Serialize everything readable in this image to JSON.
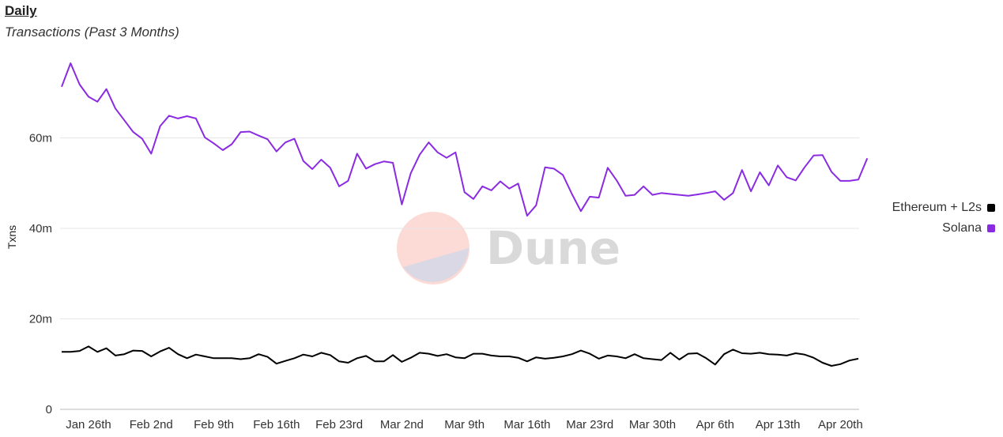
{
  "title": "Daily",
  "subtitle": "Transactions (Past 3 Months)",
  "watermark": {
    "text": "Dune"
  },
  "chart_data": {
    "type": "line",
    "title": "Daily",
    "subtitle": "Transactions (Past 3 Months)",
    "xlabel": "",
    "ylabel": "Txns",
    "ylim": [
      0,
      80000000
    ],
    "yticks": [
      0,
      20000000,
      40000000,
      60000000
    ],
    "ytick_labels": [
      "0",
      "20m",
      "40m",
      "60m"
    ],
    "xtick_labels": [
      "Jan 26th",
      "Feb 2nd",
      "Feb 9th",
      "Feb 16th",
      "Feb 23rd",
      "Mar 2nd",
      "Mar 9th",
      "Mar 16th",
      "Mar 23rd",
      "Mar 30th",
      "Apr 6th",
      "Apr 13th",
      "Apr 20th"
    ],
    "grid": true,
    "legend_position": "right",
    "series": [
      {
        "name": "Ethereum + L2s",
        "color": "#000000",
        "values": [
          12.7,
          12.7,
          12.9,
          13.9,
          12.7,
          13.5,
          11.9,
          12.2,
          13.0,
          12.9,
          11.7,
          12.8,
          13.6,
          12.2,
          11.3,
          12.1,
          11.7,
          11.3,
          11.3,
          11.3,
          11.1,
          11.3,
          12.2,
          11.6,
          10.1,
          10.7,
          11.3,
          12.1,
          11.7,
          12.5,
          12.0,
          10.6,
          10.3,
          11.3,
          11.8,
          10.6,
          10.6,
          12.0,
          10.5,
          11.4,
          12.5,
          12.3,
          11.8,
          12.2,
          11.5,
          11.3,
          12.3,
          12.3,
          11.9,
          11.7,
          11.7,
          11.4,
          10.6,
          11.5,
          11.2,
          11.4,
          11.7,
          12.2,
          13.0,
          12.3,
          11.2,
          11.9,
          11.7,
          11.3,
          12.2,
          11.3,
          11.1,
          10.9,
          12.5,
          11.0,
          12.3,
          12.4,
          11.3,
          9.9,
          12.2,
          13.2,
          12.4,
          12.3,
          12.5,
          12.2,
          12.1,
          11.9,
          12.4,
          12.1,
          11.4,
          10.3,
          9.6,
          10.0,
          10.8,
          11.2
        ]
      },
      {
        "name": "Solana",
        "color": "#8a2be2",
        "values": [
          71.3,
          76.5,
          71.8,
          69.1,
          68.0,
          70.8,
          66.5,
          63.9,
          61.3,
          59.8,
          56.5,
          62.6,
          64.9,
          64.3,
          64.8,
          64.3,
          60.1,
          58.8,
          57.3,
          58.6,
          61.3,
          61.4,
          60.5,
          59.7,
          57.0,
          59.0,
          59.8,
          54.9,
          53.1,
          55.2,
          53.4,
          49.3,
          50.5,
          56.5,
          53.2,
          54.2,
          54.8,
          54.5,
          45.3,
          52.2,
          56.3,
          59.0,
          56.8,
          55.6,
          56.8,
          48.0,
          46.5,
          49.3,
          48.4,
          50.4,
          48.8,
          49.9,
          42.8,
          45.1,
          53.5,
          53.2,
          51.8,
          47.6,
          43.8,
          47.0,
          46.8,
          53.4,
          50.6,
          47.2,
          47.4,
          49.3,
          47.4,
          47.8,
          47.6,
          47.4,
          47.2,
          47.5,
          47.8,
          48.2,
          46.3,
          47.8,
          52.9,
          48.2,
          52.4,
          49.5,
          53.9,
          51.3,
          50.6,
          53.5,
          56.1,
          56.2,
          52.5,
          50.5,
          50.5,
          50.8,
          55.5
        ]
      }
    ]
  }
}
